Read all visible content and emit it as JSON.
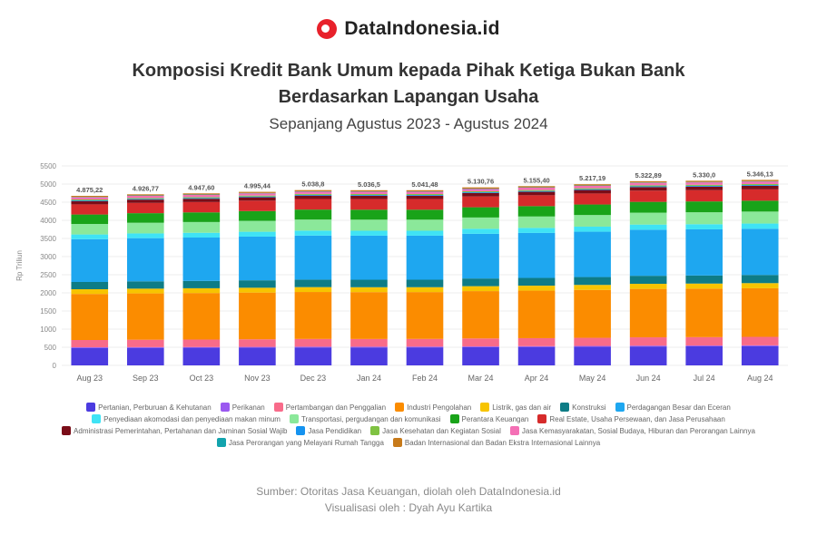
{
  "brand": {
    "name": "DataIndonesia.id",
    "logo_icon": "dataindonesia-logo-icon"
  },
  "header": {
    "title_line1": "Komposisi Kredit Bank Umum kepada Pihak Ketiga Bukan Bank",
    "title_line2": "Berdasarkan Lapangan Usaha",
    "subtitle": "Sepanjang Agustus 2023 - Agustus 2024"
  },
  "footer": {
    "source": "Sumber: Otoritas Jasa Keuangan, diolah oleh DataIndonesia.id",
    "visual": "Visualisasi oleh : Dyah Ayu Kartika"
  },
  "chart_data": {
    "type": "bar",
    "stacked": true,
    "ylabel": "Rp Triliun",
    "ylim": [
      0,
      5500
    ],
    "yticks": [
      0,
      500,
      1000,
      1500,
      2000,
      2500,
      3000,
      3500,
      4000,
      4500,
      5000,
      5500
    ],
    "grid": true,
    "legend_position": "bottom",
    "categories": [
      "Aug 23",
      "Sep 23",
      "Oct 23",
      "Nov 23",
      "Dec 23",
      "Jan 24",
      "Feb 24",
      "Mar 24",
      "Apr 24",
      "May 24",
      "Jun 24",
      "Jul 24",
      "Aug 24"
    ],
    "totals_labels": [
      "4.875,22",
      "4.926,77",
      "4.947,60",
      "4.995,44",
      "5.038,8",
      "5.036,5",
      "5.041,48",
      "5.130,76",
      "5.155,40",
      "5.217,19",
      "5.322,89",
      "5.330,0",
      "5.346,13"
    ],
    "series": [
      {
        "name": "Pertanian, Perburuan & Kehutanan",
        "color": "#4b3be0",
        "values": [
          480,
          483,
          486,
          490,
          495,
          495,
          497,
          502,
          508,
          515,
          522,
          525,
          530
        ]
      },
      {
        "name": "Perikanan",
        "color": "#9b59f0",
        "values": [
          20,
          20,
          20,
          20,
          21,
          21,
          21,
          21,
          21,
          21,
          22,
          22,
          22
        ]
      },
      {
        "name": "Pertambangan dan Penggalian",
        "color": "#f86b8a",
        "values": [
          200,
          205,
          207,
          210,
          213,
          212,
          212,
          220,
          222,
          225,
          230,
          232,
          235
        ]
      },
      {
        "name": "Industri Pengolahan",
        "color": "#fb8c00",
        "values": [
          1270,
          1277,
          1282,
          1288,
          1295,
          1293,
          1292,
          1305,
          1310,
          1320,
          1335,
          1337,
          1340
        ]
      },
      {
        "name": "Listrik, gas dan air",
        "color": "#f7c400",
        "values": [
          130,
          131,
          132,
          133,
          134,
          134,
          134,
          136,
          137,
          138,
          140,
          140,
          141
        ]
      },
      {
        "name": "Konstruksi",
        "color": "#0e7c86",
        "values": [
          200,
          202,
          203,
          205,
          207,
          207,
          207,
          212,
          214,
          217,
          222,
          223,
          225
        ]
      },
      {
        "name": "Perdagangan Besar dan Eceran",
        "color": "#1ea7f0",
        "values": [
          1180,
          1190,
          1195,
          1205,
          1215,
          1215,
          1214,
          1232,
          1240,
          1250,
          1270,
          1272,
          1275
        ]
      },
      {
        "name": "Penyediaan akomodasi dan penyediaan makan minum",
        "color": "#3fe3f5",
        "values": [
          130,
          131,
          132,
          134,
          136,
          136,
          136,
          138,
          139,
          140,
          142,
          142,
          143
        ]
      },
      {
        "name": "Transportasi, pergudangan dan komunikasi",
        "color": "#8be89a",
        "values": [
          290,
          294,
          296,
          300,
          305,
          305,
          305,
          312,
          315,
          320,
          328,
          329,
          330
        ]
      },
      {
        "name": "Perantara Keuangan",
        "color": "#19a319",
        "values": [
          260,
          264,
          266,
          270,
          275,
          275,
          275,
          282,
          285,
          290,
          298,
          299,
          300
        ]
      },
      {
        "name": "Real Estate, Usaha Persewaan, dan Jasa Perusahaan",
        "color": "#d62b2b",
        "values": [
          280,
          283,
          285,
          288,
          292,
          292,
          292,
          298,
          300,
          304,
          310,
          311,
          312
        ]
      },
      {
        "name": "Administrasi Pemerintahan, Pertahanan dan Jaminan Sosial Wajib",
        "color": "#7a0d18",
        "values": [
          90,
          91,
          91,
          92,
          93,
          93,
          93,
          94,
          95,
          96,
          97,
          97,
          98
        ]
      },
      {
        "name": "Jasa Pendidikan",
        "color": "#1593f0",
        "values": [
          20,
          20,
          20,
          21,
          21,
          21,
          21,
          22,
          22,
          22,
          22,
          22,
          22
        ]
      },
      {
        "name": "Jasa Kesehatan dan Kegiatan Sosial",
        "color": "#7fc242",
        "values": [
          25,
          25,
          25,
          26,
          26,
          26,
          26,
          27,
          27,
          27,
          28,
          28,
          28
        ]
      },
      {
        "name": "Jasa Kemasyarakatan, Sosial Budaya, Hiburan dan Perorangan Lainnya",
        "color": "#f46fb5",
        "values": [
          60,
          61,
          62,
          62,
          63,
          63,
          63,
          64,
          65,
          66,
          67,
          67,
          68
        ]
      },
      {
        "name": "Jasa Perorangan yang Melayani Rumah Tangga",
        "color": "#12a3ad",
        "values": [
          10,
          10,
          10,
          10,
          10,
          10,
          10,
          10,
          10,
          10,
          11,
          11,
          11
        ]
      },
      {
        "name": "Badan Internasional dan Badan Ekstra Internasional Lainnya",
        "color": "#c77a1a",
        "values": [
          30,
          30,
          31,
          31,
          32,
          32,
          32,
          33,
          33,
          34,
          34,
          34,
          35
        ]
      }
    ]
  }
}
